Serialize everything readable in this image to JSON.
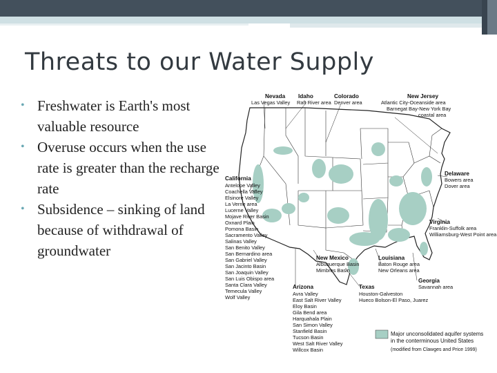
{
  "slide": {
    "title": "Threats to our Water Supply",
    "bullets": [
      "Freshwater is Earth's most valuable resource",
      "Overuse occurs when the use rate is greater than the recharge rate",
      "Subsidence – sinking of land because of withdrawal of groundwater"
    ]
  },
  "map": {
    "colors": {
      "aquifer": "#a7cfc4",
      "border": "#222222"
    },
    "regions": [
      {
        "name": "Nevada",
        "areas": [
          "Las Vegas Valley"
        ]
      },
      {
        "name": "Idaho",
        "areas": [
          "Raft River area"
        ]
      },
      {
        "name": "Colorado",
        "areas": [
          "Denver area"
        ]
      },
      {
        "name": "New Jersey",
        "areas": [
          "Atlantic City-Oceanside area",
          "Barnegat Bay-New York Bay",
          "coastal area"
        ]
      },
      {
        "name": "California",
        "areas": [
          "Antelope Valley",
          "Coachella Valley",
          "Elsinore Valley",
          "La Verne area",
          "Lucerne Valley",
          "Mojave River Basin",
          "Oxnard Plain",
          "Pomona Basin",
          "Sacramento Valley",
          "Salinas Valley",
          "San Benito Valley",
          "San Bernardino area",
          "San Gabriel Valley",
          "San Jacinto Basin",
          "San Joaquin Valley",
          "San Luis Obispo area",
          "Santa Clara Valley",
          "Temecula Valley",
          "Wolf Valley"
        ]
      },
      {
        "name": "Delaware",
        "areas": [
          "Bowers area",
          "Dover area"
        ]
      },
      {
        "name": "Virginia",
        "areas": [
          "Franklin-Suffolk area",
          "Williamsburg-West Point area"
        ]
      },
      {
        "name": "New Mexico",
        "areas": [
          "Albuquerque Basin",
          "Mimbres Basin"
        ]
      },
      {
        "name": "Louisiana",
        "areas": [
          "Baton Rouge area",
          "New Orleans area"
        ]
      },
      {
        "name": "Georgia",
        "areas": [
          "Savannah area"
        ]
      },
      {
        "name": "Arizona",
        "areas": [
          "Avra Valley",
          "East Salt River Valley",
          "Eloy Basin",
          "Gila Bend area",
          "Harquahala Plain",
          "San Simon Valley",
          "Stanfield Basin",
          "Tucson Basin",
          "West Salt River Valley",
          "Willcox Basin"
        ]
      },
      {
        "name": "Texas",
        "areas": [
          "Houston-Galveston",
          "Hueco Bolson-El Paso, Juarez"
        ]
      }
    ],
    "legend": {
      "text": [
        "Major unconsolidated aquifer systems",
        "in the conterminous United States"
      ],
      "source": "(modified from Clawges and Price 1999)"
    }
  }
}
